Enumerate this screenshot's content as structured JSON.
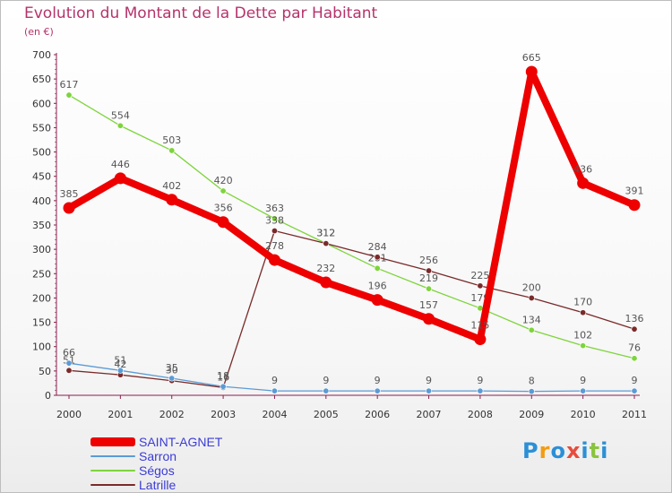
{
  "chart_data": {
    "type": "line",
    "title": "Evolution du Montant de la Dette par Habitant",
    "subtitle": "(en €)",
    "x": [
      "2000",
      "2001",
      "2002",
      "2003",
      "2004",
      "2005",
      "2006",
      "2007",
      "2008",
      "2009",
      "2010",
      "2011"
    ],
    "y_ticks": [
      "0",
      "50",
      "100",
      "150",
      "200",
      "250",
      "300",
      "350",
      "400",
      "450",
      "500",
      "550",
      "600",
      "650",
      "700"
    ],
    "ylim": [
      0,
      700
    ],
    "grid": false,
    "legend_position": "bottom-left",
    "series": [
      {
        "name": "Ségos",
        "color": "#7ed43c",
        "values": [
          617,
          554,
          503,
          420,
          363,
          312,
          261,
          219,
          179,
          134,
          102,
          76
        ]
      },
      {
        "name": "Latrille",
        "color": "#7a2a2a",
        "values": [
          51,
          42,
          30,
          16,
          338,
          312,
          284,
          256,
          225,
          200,
          170,
          136
        ]
      },
      {
        "name": "Sarron",
        "color": "#5b9bd5",
        "values": [
          66,
          51,
          35,
          18,
          9,
          9,
          9,
          9,
          9,
          8,
          9,
          9
        ]
      },
      {
        "name": "SAINT-AGNET",
        "color": "#ee0000",
        "values": [
          385,
          446,
          402,
          356,
          278,
          232,
          196,
          157,
          115,
          665,
          436,
          391
        ]
      }
    ]
  },
  "legend": [
    {
      "label": "SAINT-AGNET",
      "color": "#ee0000"
    },
    {
      "label": "Sarron",
      "color": "#5b9bd5"
    },
    {
      "label": "Ségos",
      "color": "#7ed43c"
    },
    {
      "label": "Latrille",
      "color": "#7a2a2a"
    }
  ],
  "watermark": {
    "letters": [
      "P",
      "r",
      "o",
      "x",
      "i",
      "t",
      "i"
    ],
    "colors": [
      "#2c8fd6",
      "#f39c12",
      "#2c8fd6",
      "#e74c3c",
      "#2c8fd6",
      "#8ac43f",
      "#2c8fd6"
    ]
  }
}
